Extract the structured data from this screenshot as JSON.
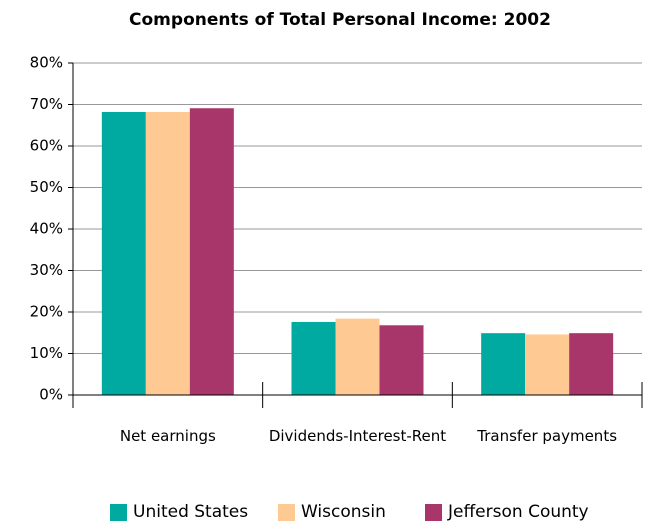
{
  "chart_data": {
    "type": "bar",
    "title": "Components of Total Personal Income: 2002",
    "categories": [
      "Net earnings",
      "Dividends-Interest-Rent",
      "Transfer payments"
    ],
    "series": [
      {
        "name": "United States",
        "color": "#00aaa0",
        "values": [
          68.2,
          17.6,
          14.9
        ]
      },
      {
        "name": "Wisconsin",
        "color": "#ffc993",
        "values": [
          68.2,
          18.4,
          14.6
        ]
      },
      {
        "name": "Jefferson County",
        "color": "#a9366a",
        "values": [
          69.1,
          16.8,
          14.9
        ]
      }
    ],
    "ylim": [
      0,
      80
    ],
    "yticks": [
      {
        "value": 0,
        "label": "0%"
      },
      {
        "value": 10,
        "label": "10%"
      },
      {
        "value": 20,
        "label": "20%"
      },
      {
        "value": 30,
        "label": "30%"
      },
      {
        "value": 40,
        "label": "40%"
      },
      {
        "value": 50,
        "label": "50%"
      },
      {
        "value": 60,
        "label": "60%"
      },
      {
        "value": 70,
        "label": "70%"
      },
      {
        "value": 80,
        "label": "80%"
      }
    ],
    "grid": true
  }
}
